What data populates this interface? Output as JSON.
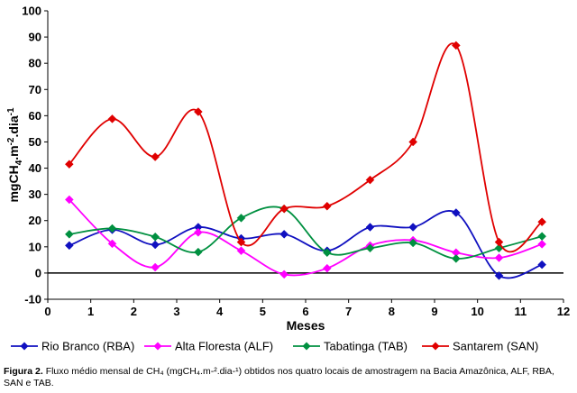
{
  "chart_data": {
    "type": "line",
    "ylabel": "mgCH4.m-2.dia-1",
    "ylabel_parts": {
      "base": "mgCH",
      "sub": "4",
      "mid": ".m",
      "sup1": "-2",
      "tail": ".dia",
      "sup2": "-1"
    },
    "xlabel": "Meses",
    "xlim": [
      0,
      12
    ],
    "ylim": [
      -10,
      100
    ],
    "xticks": [
      "0",
      "1",
      "2",
      "3",
      "4",
      "5",
      "6",
      "7",
      "8",
      "9",
      "10",
      "11",
      "12"
    ],
    "yticks": [
      "-10",
      "0",
      "10",
      "20",
      "30",
      "40",
      "50",
      "60",
      "70",
      "80",
      "90",
      "100"
    ],
    "grid": false,
    "zero_line": true,
    "legend_position": "bottom",
    "x": [
      0.5,
      1.5,
      2.5,
      3.5,
      4.5,
      5.5,
      6.5,
      7.5,
      8.5,
      9.5,
      10.5,
      11.5
    ],
    "series": [
      {
        "name": "Rio Branco (RBA)",
        "color": "#1010c0",
        "marker": "diamond",
        "values": [
          10.5,
          16.5,
          10.8,
          17.5,
          13.2,
          14.8,
          8.5,
          17.5,
          17.5,
          23.0,
          -1.0,
          3.2
        ]
      },
      {
        "name": "Alta Floresta (ALF)",
        "color": "#ff00ff",
        "marker": "diamond",
        "values": [
          28.0,
          11.2,
          2.2,
          15.5,
          8.5,
          -0.5,
          1.8,
          10.5,
          12.5,
          7.8,
          5.8,
          11.0
        ]
      },
      {
        "name": "Tabatinga (TAB)",
        "color": "#009040",
        "marker": "diamond",
        "values": [
          14.8,
          17.0,
          13.8,
          8.0,
          21.0,
          24.5,
          7.8,
          9.5,
          11.5,
          5.5,
          9.5,
          14.0
        ]
      },
      {
        "name": "Santarem (SAN)",
        "color": "#e00000",
        "marker": "diamond",
        "values": [
          41.5,
          58.8,
          44.3,
          61.5,
          11.8,
          24.5,
          25.5,
          35.5,
          50.0,
          86.8,
          11.8,
          19.5
        ]
      }
    ]
  },
  "caption": {
    "label": "Figura 2.",
    "text": "Fluxo médio mensal de CH₄ (mgCH₄.m-².dia-¹) obtidos nos quatro locais de amostragem na Bacia Amazônica, ALF, RBA, SAN e TAB."
  }
}
